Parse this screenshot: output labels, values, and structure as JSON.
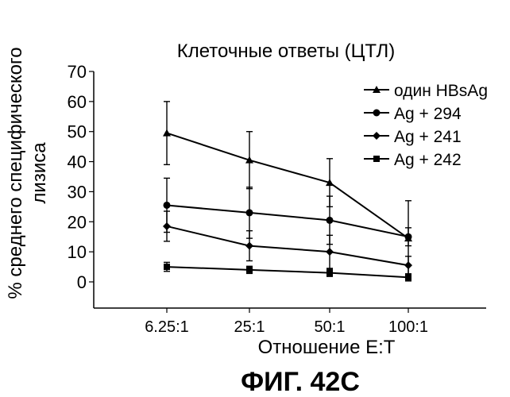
{
  "chart_data": {
    "type": "line",
    "title": "Клеточные ответы (ЦТЛ)",
    "xlabel": "Отношение E:T",
    "ylabel_line1": "% среднего  специфического",
    "ylabel_line2": "лизиса",
    "categories": [
      "6.25:1",
      "25:1",
      "50:1",
      "100:1"
    ],
    "ylim": [
      0,
      70
    ],
    "yticks": [
      "0",
      "10",
      "20",
      "30",
      "40",
      "50",
      "60",
      "70"
    ],
    "series": [
      {
        "name": "один HBsAg",
        "marker": "triangle",
        "values": [
          49.5,
          40.5,
          33,
          14.5
        ],
        "errors": [
          10.5,
          9.5,
          8,
          12.5
        ]
      },
      {
        "name": "Ag + 294",
        "marker": "circle",
        "values": [
          25.5,
          23,
          20.5,
          15
        ],
        "errors": [
          9,
          8.5,
          8,
          3
        ]
      },
      {
        "name": "Ag + 241",
        "marker": "diamond",
        "values": [
          18.5,
          12,
          10,
          5.5
        ],
        "errors": [
          5,
          5,
          5.5,
          3
        ]
      },
      {
        "name": "Ag + 242",
        "marker": "square",
        "values": [
          5,
          4,
          3,
          1.5
        ],
        "errors": [
          1.5,
          1.2,
          1.2,
          1.2
        ]
      }
    ]
  },
  "figure_caption": "ФИГ. 42C"
}
